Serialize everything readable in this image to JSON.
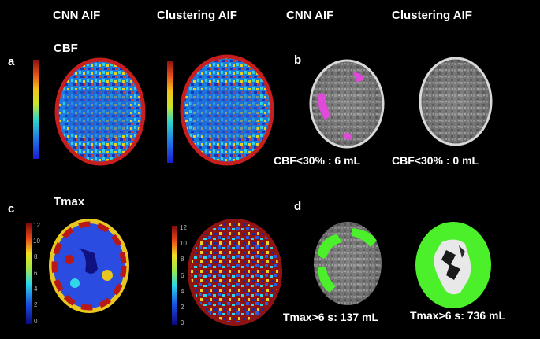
{
  "column_headers": [
    "CNN AIF",
    "Clustering AIF",
    "CNN AIF",
    "Clustering AIF"
  ],
  "panels": {
    "a": {
      "letter": "a",
      "map_label": "CBF"
    },
    "b": {
      "letter": "b",
      "cnn_volume": "CBF<30% : 6 mL",
      "clustering_volume": "CBF<30% : 0 mL"
    },
    "c": {
      "letter": "c",
      "map_label": "Tmax",
      "colorbar_ticks": [
        "12",
        "10",
        "8",
        "6",
        "4",
        "2",
        "0"
      ]
    },
    "d": {
      "letter": "d",
      "cnn_volume": "Tmax>6 s: 137 mL",
      "clustering_volume": "Tmax>6 s: 736 mL"
    }
  },
  "colors": {
    "lesion_cbf": "#e04ad8",
    "lesion_tmax": "#4cf02a",
    "background": "#000000"
  }
}
